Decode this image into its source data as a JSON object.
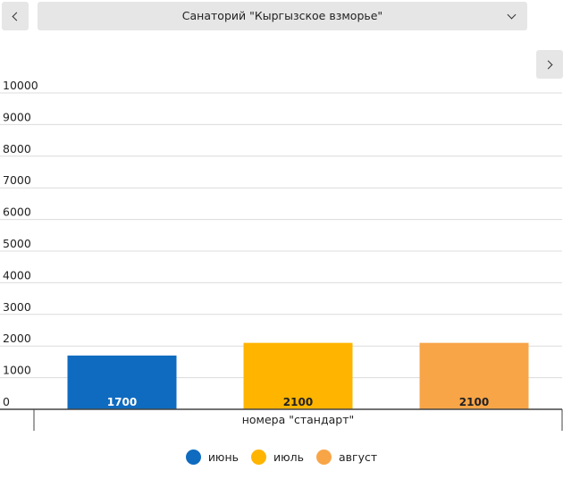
{
  "header": {
    "selector_label": "Санаторий \"Кыргызское взморье\"",
    "prev_icon": "chevron-left-icon",
    "next_icon": "chevron-right-icon",
    "caret_icon": "chevron-down-icon"
  },
  "chart_data": {
    "type": "bar",
    "categories": [
      "номера \"стандарт\""
    ],
    "series": [
      {
        "name": "июнь",
        "values": [
          1700
        ],
        "color": "#0f6bbf"
      },
      {
        "name": "июль",
        "values": [
          2100
        ],
        "color": "#ffb400"
      },
      {
        "name": "август",
        "values": [
          2100
        ],
        "color": "#f8a548"
      }
    ],
    "ylim": [
      0,
      10000
    ],
    "yticks": [
      0,
      1000,
      2000,
      3000,
      4000,
      5000,
      6000,
      7000,
      8000,
      9000,
      10000
    ],
    "grid": true,
    "legend": "bottom"
  }
}
